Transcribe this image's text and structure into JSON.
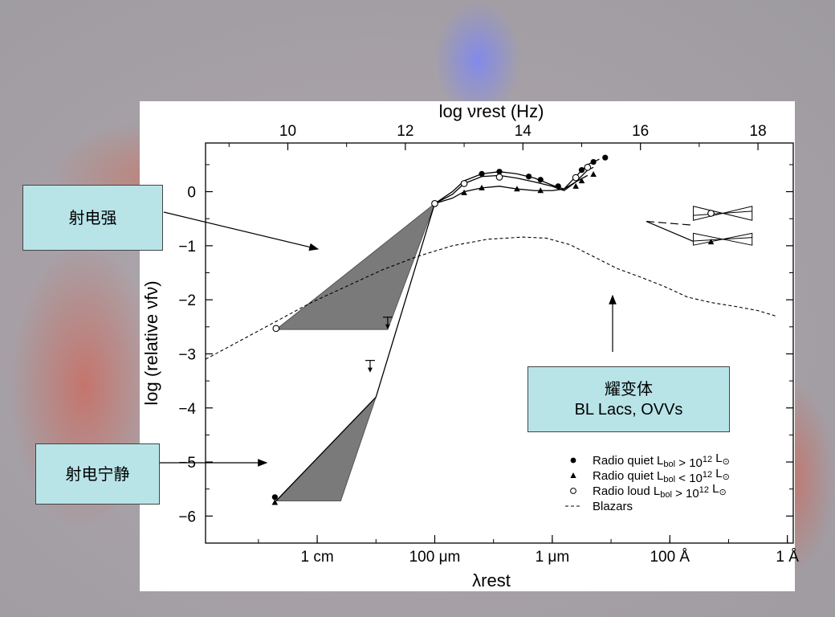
{
  "callouts": {
    "radio_loud": "射电强",
    "radio_quiet": "射电宁静",
    "blazars_line1": "耀变体",
    "blazars_line2": "BL Lacs, OVVs"
  },
  "chart_data": {
    "type": "line",
    "title": "",
    "x_top_label": "log νrest (Hz)",
    "x_bottom_label": "λrest",
    "ylabel": "log (relative νfν)",
    "xlim": [
      8.6,
      18.6
    ],
    "ylim": [
      -6.5,
      0.9
    ],
    "top_ticks": [
      10,
      12,
      14,
      16,
      18
    ],
    "bottom_ticks": [
      {
        "label": "1 cm",
        "x": 10.5
      },
      {
        "label": "100 μm",
        "x": 12.5
      },
      {
        "label": "1 μm",
        "x": 14.5
      },
      {
        "label": "100 Å",
        "x": 16.5
      },
      {
        "label": "1 Å",
        "x": 18.5
      }
    ],
    "y_ticks": [
      0,
      -1,
      -2,
      -3,
      -4,
      -5,
      -6
    ],
    "legend": [
      {
        "marker": "filled-circle",
        "text": "Radio quiet L",
        "sub": "bol",
        "rel": " > 10",
        "sup": "12",
        "unit": " L",
        "unit_sub": "⊙"
      },
      {
        "marker": "triangle",
        "text": "Radio quiet L",
        "sub": "bol",
        "rel": " < 10",
        "sup": "12",
        "unit": " L",
        "unit_sub": "⊙"
      },
      {
        "marker": "open-circle",
        "text": "Radio loud L",
        "sub": "bol",
        "rel": " > 10",
        "sup": "12",
        "unit": " L",
        "unit_sub": "⊙"
      },
      {
        "marker": "dashed",
        "text": "Blazars",
        "sub": "",
        "rel": "",
        "sup": "",
        "unit": "",
        "unit_sub": ""
      }
    ],
    "legend_position": "bottom-right",
    "series": [
      {
        "name": "Radio loud L bol > 10^12 L⊙",
        "style": "solid",
        "points": [
          [
            12.5,
            -0.22
          ],
          [
            12.8,
            -0.05
          ],
          [
            13.0,
            0.15
          ],
          [
            13.3,
            0.28
          ],
          [
            13.6,
            0.3
          ],
          [
            13.9,
            0.25
          ],
          [
            14.2,
            0.18
          ],
          [
            14.5,
            0.1
          ],
          [
            14.7,
            0.02
          ],
          [
            14.9,
            0.18
          ],
          [
            15.1,
            0.4
          ],
          [
            15.2,
            0.45
          ]
        ]
      },
      {
        "name": "Radio quiet L bol > 10^12 L⊙",
        "style": "solid",
        "points": [
          [
            12.5,
            -0.22
          ],
          [
            12.8,
            0.0
          ],
          [
            13.0,
            0.2
          ],
          [
            13.3,
            0.33
          ],
          [
            13.6,
            0.37
          ],
          [
            13.9,
            0.33
          ],
          [
            14.2,
            0.25
          ],
          [
            14.5,
            0.12
          ],
          [
            14.7,
            0.05
          ],
          [
            14.9,
            0.28
          ],
          [
            15.1,
            0.5
          ],
          [
            15.3,
            0.6
          ]
        ]
      },
      {
        "name": "Radio quiet L bol < 10^12 L⊙",
        "style": "solid",
        "points": [
          [
            12.5,
            -0.22
          ],
          [
            12.8,
            -0.12
          ],
          [
            13.0,
            0.0
          ],
          [
            13.3,
            0.07
          ],
          [
            13.6,
            0.1
          ],
          [
            13.9,
            0.05
          ],
          [
            14.2,
            0.02
          ],
          [
            14.5,
            0.02
          ],
          [
            14.7,
            0.05
          ],
          [
            14.9,
            0.18
          ],
          [
            15.1,
            0.3
          ]
        ]
      },
      {
        "name": "Blazars",
        "style": "dashed",
        "points": [
          [
            8.6,
            -3.1
          ],
          [
            9.2,
            -2.75
          ],
          [
            9.8,
            -2.4
          ],
          [
            10.4,
            -2.05
          ],
          [
            11.0,
            -1.75
          ],
          [
            11.6,
            -1.45
          ],
          [
            12.2,
            -1.2
          ],
          [
            12.8,
            -1.0
          ],
          [
            13.4,
            -0.88
          ],
          [
            14.0,
            -0.84
          ],
          [
            14.4,
            -0.86
          ],
          [
            14.8,
            -0.98
          ],
          [
            15.2,
            -1.2
          ],
          [
            15.6,
            -1.42
          ],
          [
            16.0,
            -1.58
          ],
          [
            16.4,
            -1.75
          ],
          [
            16.8,
            -1.95
          ],
          [
            17.2,
            -2.05
          ],
          [
            17.6,
            -2.12
          ],
          [
            18.0,
            -2.2
          ],
          [
            18.3,
            -2.3
          ]
        ]
      }
    ],
    "shaded_regions": [
      {
        "name": "radio-loud",
        "points": [
          [
            9.8,
            -2.55
          ],
          [
            12.5,
            -0.22
          ],
          [
            11.7,
            -2.55
          ]
        ]
      },
      {
        "name": "radio-quiet",
        "points": [
          [
            9.8,
            -5.72
          ],
          [
            11.5,
            -3.8
          ],
          [
            10.9,
            -5.72
          ]
        ]
      }
    ],
    "markers": [
      {
        "shape": "filled-circle",
        "x": 13.3,
        "y": 0.33
      },
      {
        "shape": "filled-circle",
        "x": 13.6,
        "y": 0.37
      },
      {
        "shape": "filled-circle",
        "x": 14.1,
        "y": 0.28
      },
      {
        "shape": "filled-circle",
        "x": 14.3,
        "y": 0.22
      },
      {
        "shape": "filled-circle",
        "x": 14.6,
        "y": 0.1
      },
      {
        "shape": "filled-circle",
        "x": 15.0,
        "y": 0.4
      },
      {
        "shape": "filled-circle",
        "x": 15.2,
        "y": 0.55
      },
      {
        "shape": "filled-circle",
        "x": 15.4,
        "y": 0.63
      },
      {
        "shape": "filled-circle",
        "x": 9.78,
        "y": -5.65
      },
      {
        "shape": "triangle",
        "x": 13.0,
        "y": -0.02
      },
      {
        "shape": "triangle",
        "x": 13.3,
        "y": 0.07
      },
      {
        "shape": "triangle",
        "x": 13.9,
        "y": 0.05
      },
      {
        "shape": "triangle",
        "x": 14.3,
        "y": 0.02
      },
      {
        "shape": "triangle",
        "x": 14.9,
        "y": 0.1
      },
      {
        "shape": "triangle",
        "x": 15.0,
        "y": 0.2
      },
      {
        "shape": "triangle",
        "x": 15.2,
        "y": 0.32
      },
      {
        "shape": "triangle",
        "x": 9.78,
        "y": -5.75
      },
      {
        "shape": "triangle",
        "x": 17.2,
        "y": -0.93
      },
      {
        "shape": "open-circle",
        "x": 9.8,
        "y": -2.53
      },
      {
        "shape": "open-circle",
        "x": 12.5,
        "y": -0.22
      },
      {
        "shape": "open-circle",
        "x": 13.0,
        "y": 0.15
      },
      {
        "shape": "open-circle",
        "x": 13.6,
        "y": 0.27
      },
      {
        "shape": "open-circle",
        "x": 14.9,
        "y": 0.26
      },
      {
        "shape": "open-circle",
        "x": 15.1,
        "y": 0.45
      },
      {
        "shape": "open-circle",
        "x": 17.2,
        "y": -0.4
      }
    ],
    "upper_limits": [
      {
        "x": 11.7,
        "y": -2.5
      },
      {
        "x": 11.4,
        "y": -3.3
      }
    ],
    "xray_lines": [
      {
        "style": "solid",
        "points": [
          [
            16.1,
            -0.55
          ],
          [
            16.9,
            -0.92
          ]
        ]
      },
      {
        "style": "dashed",
        "points": [
          [
            16.1,
            -0.55
          ],
          [
            16.9,
            -0.62
          ]
        ]
      }
    ],
    "bowties": [
      {
        "x1": 16.9,
        "x2": 17.9,
        "ycenter": -0.4,
        "halfwidth": 0.13
      },
      {
        "x1": 16.9,
        "x2": 17.9,
        "ycenter": -0.88,
        "halfwidth": 0.11
      }
    ]
  }
}
